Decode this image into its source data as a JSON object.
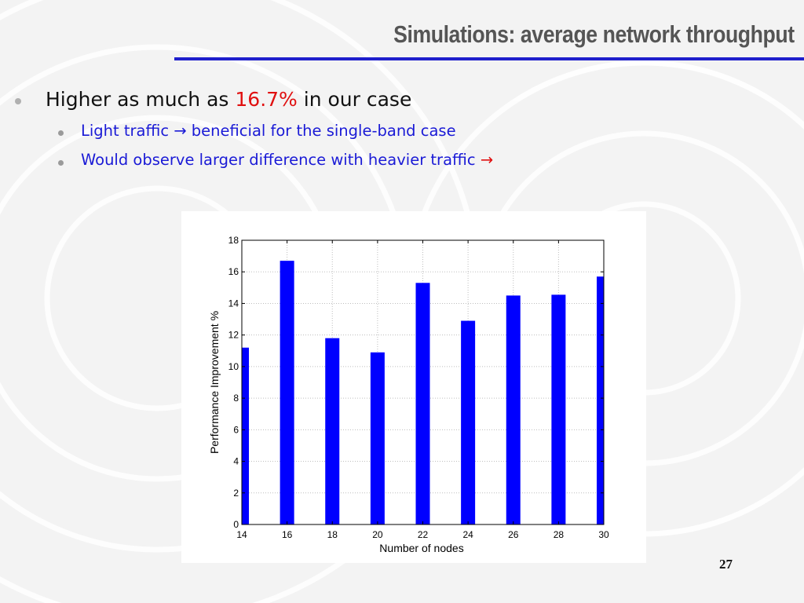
{
  "slide": {
    "title": "Simulations: average network throughput",
    "page_number": "27",
    "accent_color": "#1f1fcc"
  },
  "bullets": {
    "main": {
      "prefix": "Higher as much as ",
      "highlight": "16.7%",
      "suffix": " in our case"
    },
    "sub": [
      {
        "text": "Light traffic ",
        "arrow": "→",
        "rest": " beneficial for the single-band case"
      },
      {
        "text": "Would observe larger difference with heavier traffic ",
        "arrow": "→"
      }
    ]
  },
  "chart_data": {
    "type": "bar",
    "categories": [
      "14",
      "16",
      "18",
      "20",
      "22",
      "24",
      "26",
      "28",
      "30"
    ],
    "series": [
      {
        "values": [
          11.2,
          16.7,
          11.8,
          10.9,
          15.3,
          12.9,
          14.5,
          14.55,
          15.7
        ],
        "color": "#0000ff"
      }
    ],
    "xlabel": "Number of nodes",
    "ylabel": "Performance Improvement %",
    "ylim": [
      0,
      18
    ],
    "yticks": [
      0,
      2,
      4,
      6,
      8,
      10,
      12,
      14,
      16,
      18
    ],
    "grid": true
  }
}
